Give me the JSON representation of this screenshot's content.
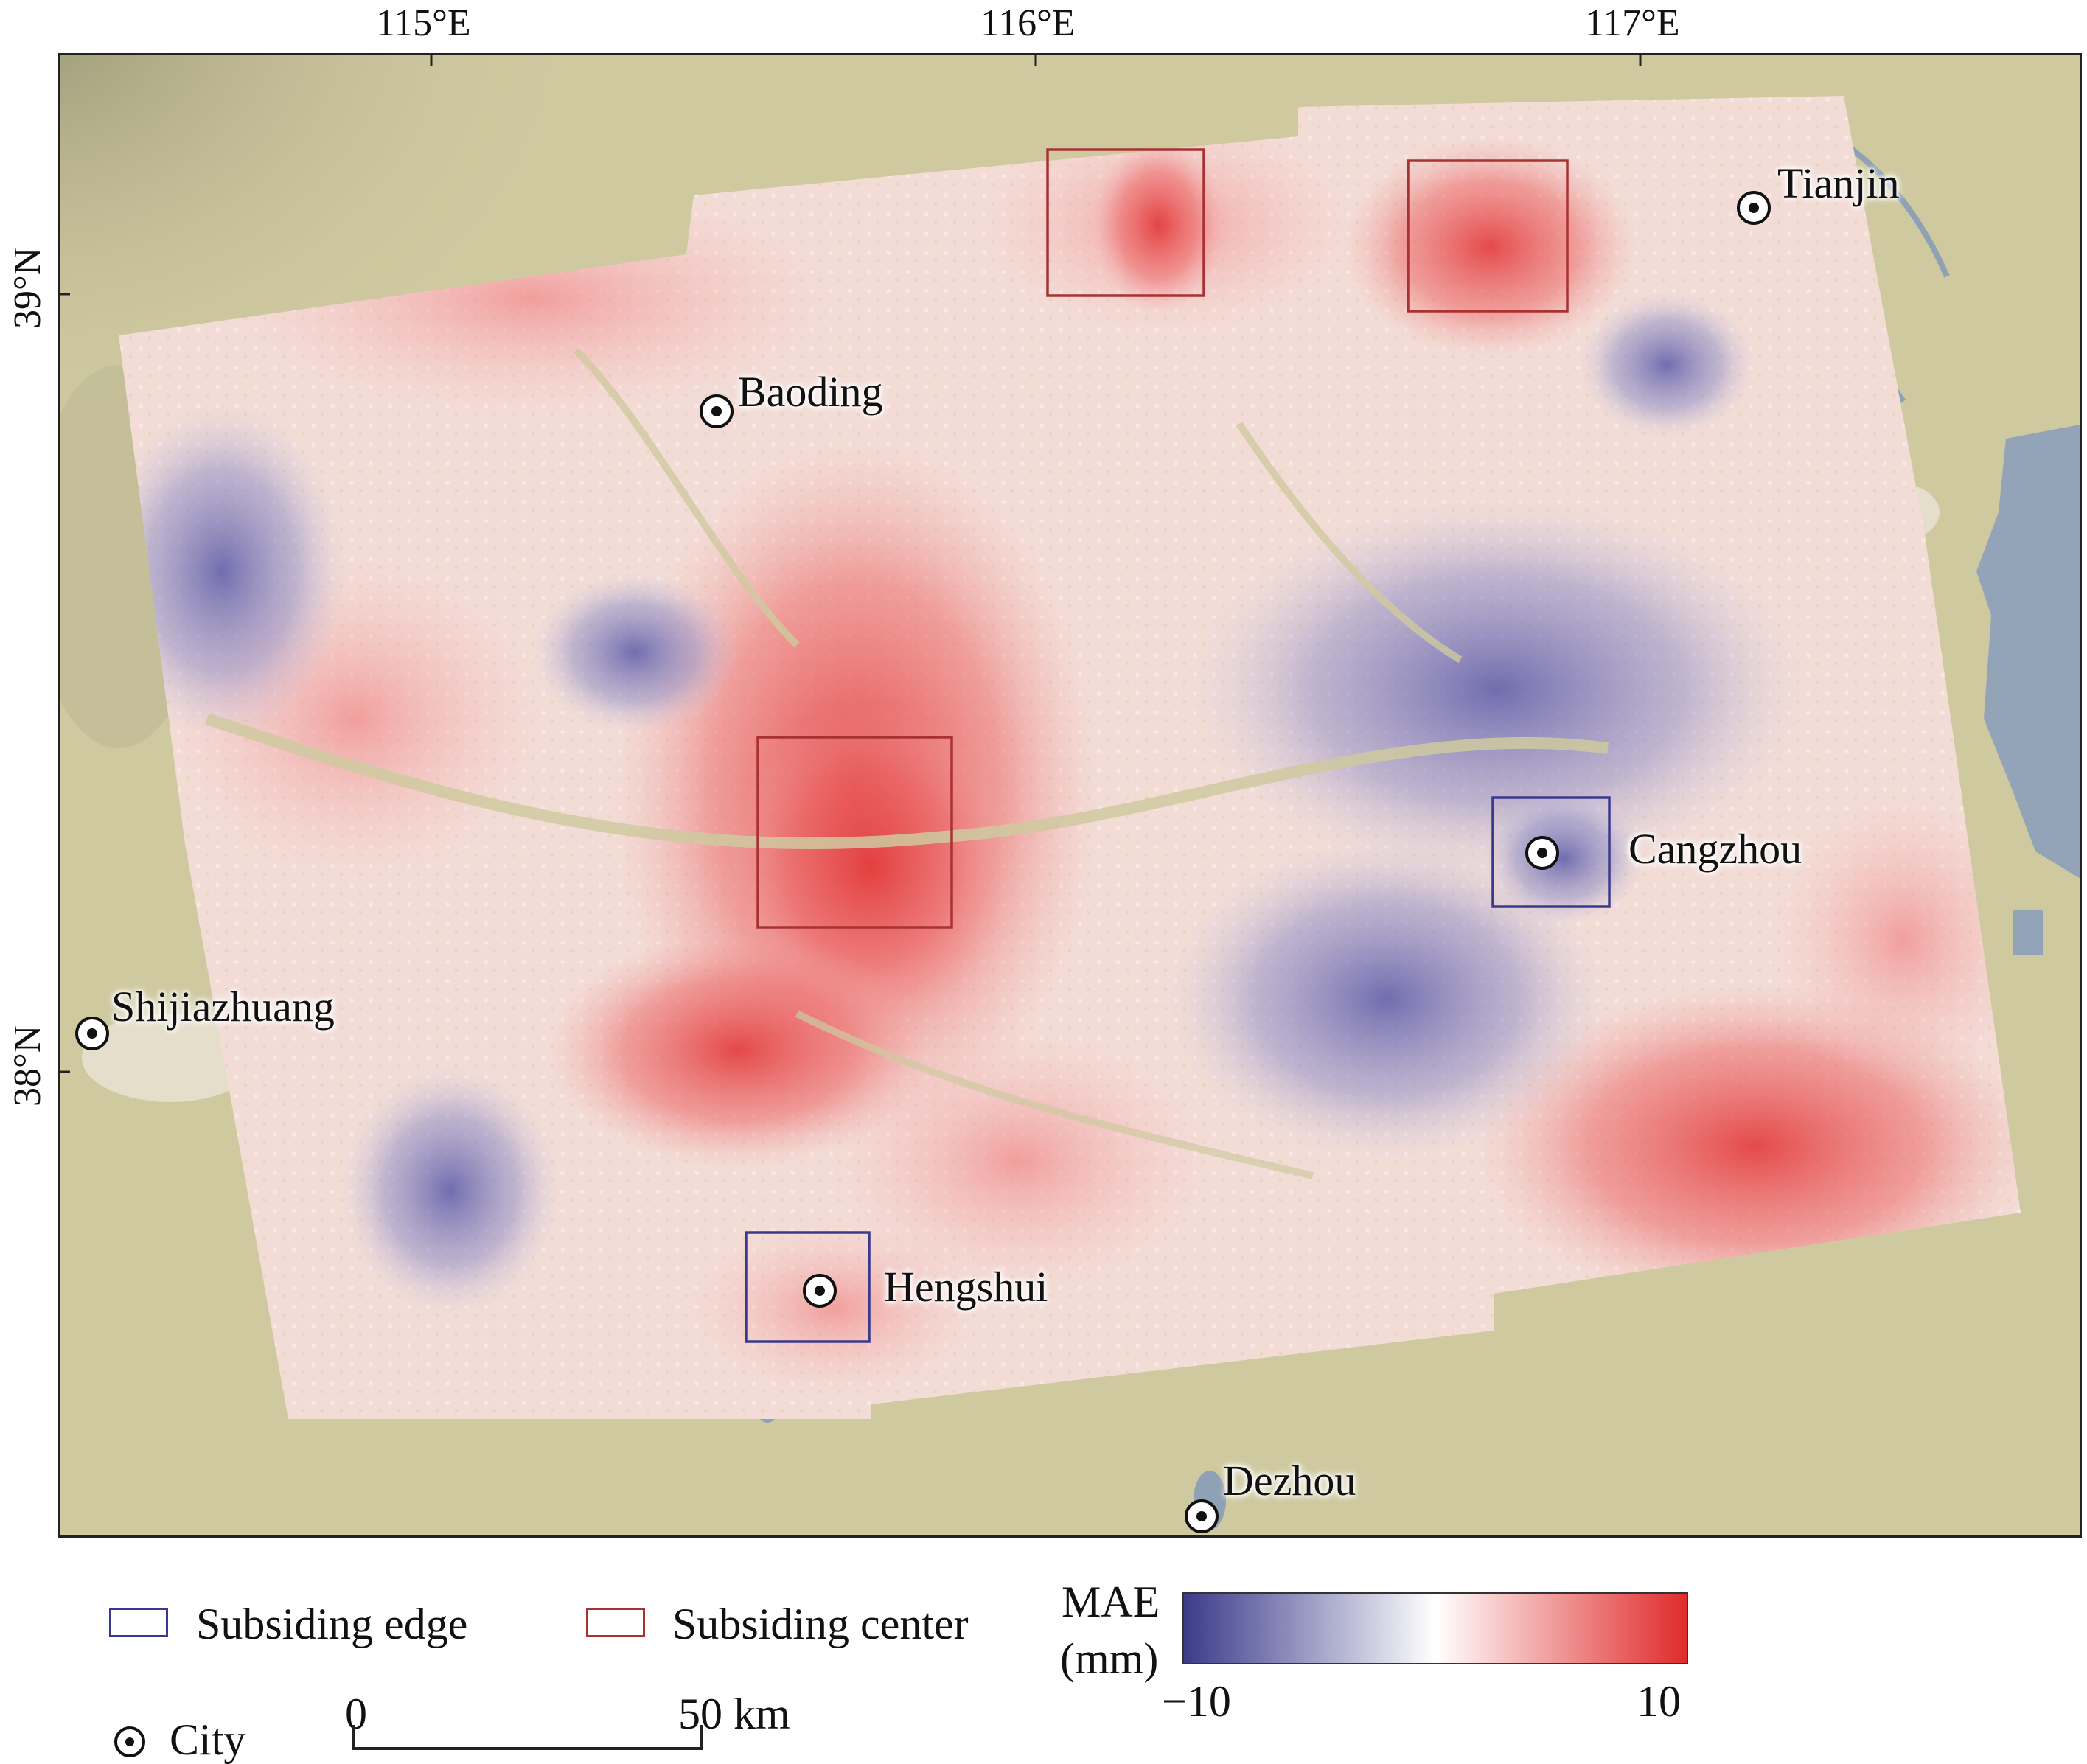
{
  "axes": {
    "lon_ticks": [
      "115°E",
      "116°E",
      "117°E"
    ],
    "lat_ticks": [
      "39°N",
      "38°N"
    ]
  },
  "cities": [
    {
      "name": "Tianjin"
    },
    {
      "name": "Baoding"
    },
    {
      "name": "Cangzhou"
    },
    {
      "name": "Shijiazhuang"
    },
    {
      "name": "Hengshui"
    },
    {
      "name": "Dezhou"
    }
  ],
  "legend": {
    "edge_label": "Subsiding edge",
    "center_label": "Subsiding center",
    "city_label": "City",
    "edge_color": "#3a3a8c",
    "center_color": "#a83232",
    "scale_start": "0",
    "scale_end": "50 km",
    "colorbar_title_1": "MAE",
    "colorbar_title_2": "(mm)",
    "colorbar_min": "−10",
    "colorbar_max": "10",
    "colorbar_colors": [
      "#3b3b8a",
      "#ffffff",
      "#e02b2b"
    ]
  }
}
